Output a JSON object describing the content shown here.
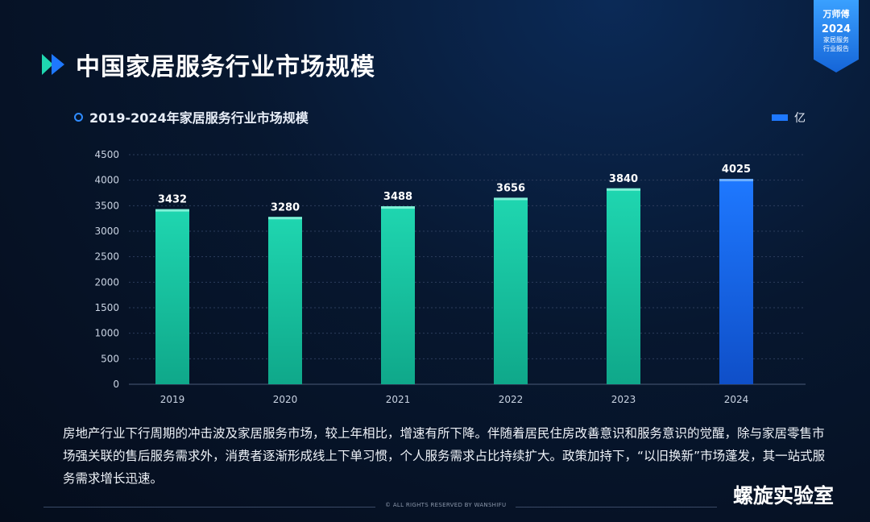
{
  "page_title": "中国家居服务行业市场规模",
  "badge": {
    "brand": "万师傅",
    "year": "2024",
    "line1": "家居服务",
    "line2": "行业报告"
  },
  "chart_data": {
    "type": "bar",
    "title": "2019-2024年家居服务行业市场规模",
    "legend": "亿",
    "categories": [
      "2019",
      "2020",
      "2021",
      "2022",
      "2023",
      "2024"
    ],
    "values": [
      3432,
      3280,
      3488,
      3656,
      3840,
      4025
    ],
    "data_labels": [
      "3432",
      "3280",
      "3488",
      "3656",
      "3840",
      "4025"
    ],
    "yticks": [
      "0",
      "500",
      "1000",
      "1500",
      "2000",
      "2500",
      "3000",
      "3500",
      "4000",
      "4500"
    ],
    "ylim": [
      0,
      4500
    ],
    "highlight_index": 5,
    "colors": {
      "bar_top": "#1fd6b0",
      "bar_bottom": "#0fa88a",
      "highlight_top": "#1e78ff",
      "highlight_bottom": "#0f4fc8"
    },
    "grid": true
  },
  "paragraph": "房地产行业下行周期的冲击波及家居服务市场，较上年相比，增速有所下降。伴随着居民住房改善意识和服务意识的觉醒，除与家居零售市场强关联的售后服务需求外，消费者逐渐形成线上下单习惯，个人服务需求占比持续扩大。政策加持下，“以旧换新”市场蓬发，其一站式服务需求增长迅速。",
  "footer": "© ALL RIGHTS RESERVED BY WANSHIFU",
  "watermark": "螺旋实验室"
}
